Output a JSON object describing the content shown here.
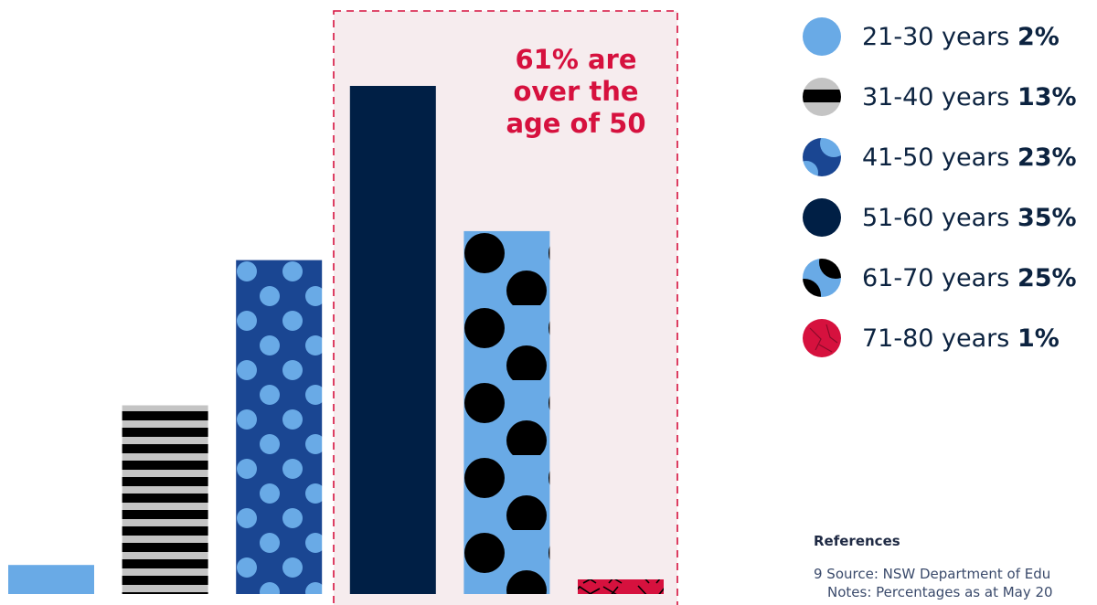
{
  "colors": {
    "light_blue": "#69aae6",
    "black": "#000000",
    "grey": "#c4c4c4",
    "royal_blue": "#1a4692",
    "navy": "#001f45",
    "red": "#d6113e",
    "highlight_fill": "#f6ecee",
    "highlight_border": "#d6113e"
  },
  "callout": {
    "text": "61% are over the age of 50"
  },
  "chart_data": {
    "type": "bar",
    "categories": [
      "21-30 years",
      "31-40 years",
      "41-50 years",
      "51-60 years",
      "61-70 years",
      "71-80 years"
    ],
    "values": [
      2,
      13,
      23,
      35,
      25,
      1
    ],
    "unit": "%",
    "ylim": [
      0,
      35
    ],
    "grid": false,
    "axes_visible": false,
    "highlighted_categories": [
      "51-60 years",
      "61-70 years",
      "71-80 years"
    ],
    "patterns": [
      "solid-light-blue",
      "black-grey-stripes",
      "light-blue-dots-on-royal-blue",
      "solid-navy",
      "black-dots-on-light-blue",
      "red-with-black-lines"
    ],
    "legend_position": "right"
  },
  "legend": {
    "items": [
      {
        "range": "21-30 years",
        "value": "2%",
        "icon": "light-blue-circle-icon"
      },
      {
        "range": "31-40 years",
        "value": "13%",
        "icon": "striped-circle-icon"
      },
      {
        "range": "41-50 years",
        "value": "23%",
        "icon": "dotted-blue-circle-icon"
      },
      {
        "range": "51-60 years",
        "value": "35%",
        "icon": "navy-circle-icon"
      },
      {
        "range": "61-70 years",
        "value": "25%",
        "icon": "dotted-light-blue-circle-icon"
      },
      {
        "range": "71-80 years",
        "value": "1%",
        "icon": "red-pattern-circle-icon"
      }
    ]
  },
  "references": {
    "heading": "References",
    "lines": [
      "9 Source: NSW Department of Edu",
      "Notes: Percentages as at May 20"
    ]
  }
}
